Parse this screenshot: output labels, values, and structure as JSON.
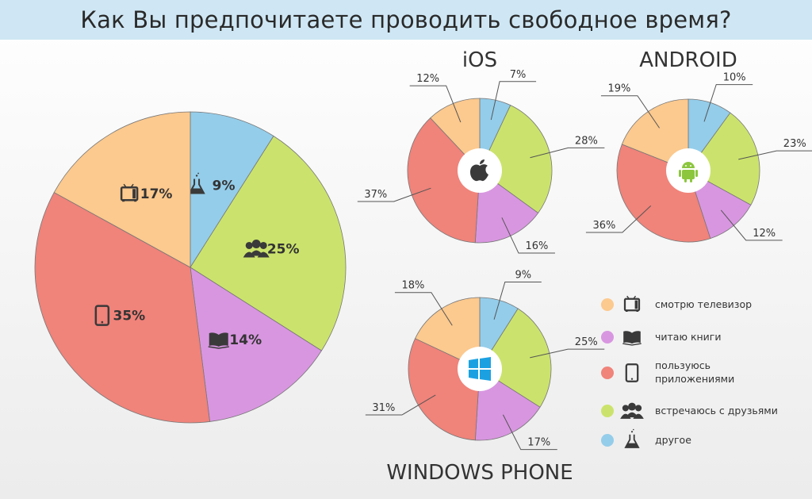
{
  "title": "Как Вы предпочитаете проводить свободное время?",
  "colors": {
    "tv": "#fcc98e",
    "books": "#d896e0",
    "apps": "#f0837a",
    "friends": "#cbe36c",
    "other": "#94cdea",
    "title_bg": "#cfe7f4"
  },
  "chart_data": [
    {
      "type": "pie",
      "title": "",
      "name": "overall",
      "categories": [
        "other",
        "friends",
        "books",
        "apps",
        "tv"
      ],
      "values": [
        9,
        25,
        14,
        35,
        17
      ],
      "labels": [
        "9%",
        "25%",
        "14%",
        "35%",
        "17%"
      ]
    },
    {
      "type": "pie",
      "title": "iOS",
      "name": "ios",
      "center_icon": "apple-icon",
      "categories": [
        "other",
        "friends",
        "books",
        "apps",
        "tv"
      ],
      "values": [
        7,
        28,
        16,
        37,
        12
      ],
      "labels": [
        "7%",
        "28%",
        "16%",
        "37%",
        "12%"
      ]
    },
    {
      "type": "pie",
      "title": "ANDROID",
      "name": "android",
      "center_icon": "android-icon",
      "categories": [
        "other",
        "friends",
        "books",
        "apps",
        "tv"
      ],
      "values": [
        10,
        23,
        12,
        36,
        19
      ],
      "labels": [
        "10%",
        "23%",
        "12%",
        "36%",
        "19%"
      ]
    },
    {
      "type": "pie",
      "title": "WINDOWS PHONE",
      "name": "windows-phone",
      "center_icon": "windows-icon",
      "categories": [
        "other",
        "friends",
        "books",
        "apps",
        "tv"
      ],
      "values": [
        9,
        25,
        17,
        31,
        18
      ],
      "labels": [
        "9%",
        "25%",
        "17%",
        "31%",
        "18%"
      ]
    }
  ],
  "legend": [
    {
      "key": "tv",
      "icon": "tv-icon",
      "lines": [
        "смотрю телевизор"
      ]
    },
    {
      "key": "books",
      "icon": "book-icon",
      "lines": [
        "читаю книги"
      ]
    },
    {
      "key": "apps",
      "icon": "phone-icon",
      "lines": [
        "пользуюсь",
        "приложениями"
      ]
    },
    {
      "key": "friends",
      "icon": "people-icon",
      "lines": [
        "встречаюсь с друзьями"
      ]
    },
    {
      "key": "other",
      "icon": "flask-icon",
      "lines": [
        "другое"
      ]
    }
  ]
}
